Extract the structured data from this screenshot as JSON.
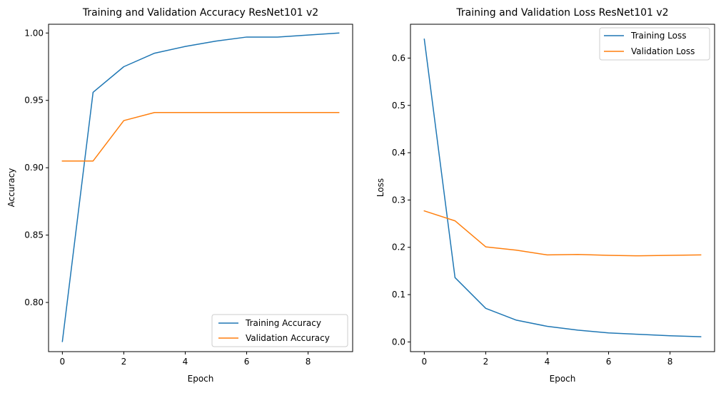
{
  "chart_data": [
    {
      "type": "line",
      "title": "Training and Validation Accuracy ResNet101 v2",
      "xlabel": "Epoch",
      "ylabel": "Accuracy",
      "x": [
        0,
        1,
        2,
        3,
        4,
        5,
        6,
        7,
        8,
        9
      ],
      "xlim": [
        -0.45,
        9.45
      ],
      "ylim": [
        0.7635,
        1.0065
      ],
      "xticks": [
        0,
        2,
        4,
        6,
        8
      ],
      "yticks": [
        0.8,
        0.85,
        0.9,
        0.95,
        1.0
      ],
      "ytick_labels": [
        "0.80",
        "0.85",
        "0.90",
        "0.95",
        "1.00"
      ],
      "legend_loc": "lower right",
      "grid": false,
      "series": [
        {
          "name": "Training Accuracy",
          "color": "#1f77b4",
          "values": [
            0.771,
            0.956,
            0.975,
            0.985,
            0.99,
            0.994,
            0.997,
            0.997,
            0.9985,
            1.0
          ]
        },
        {
          "name": "Validation Accuracy",
          "color": "#ff7f0e",
          "values": [
            0.905,
            0.905,
            0.935,
            0.941,
            0.941,
            0.941,
            0.941,
            0.941,
            0.941,
            0.941
          ]
        }
      ]
    },
    {
      "type": "line",
      "title": "Training and Validation Loss ResNet101 v2",
      "xlabel": "Epoch",
      "ylabel": "Loss",
      "x": [
        0,
        1,
        2,
        3,
        4,
        5,
        6,
        7,
        8,
        9
      ],
      "xlim": [
        -0.45,
        9.45
      ],
      "ylim": [
        -0.0205,
        0.6715
      ],
      "xticks": [
        0,
        2,
        4,
        6,
        8
      ],
      "yticks": [
        0.0,
        0.1,
        0.2,
        0.3,
        0.4,
        0.5,
        0.6
      ],
      "ytick_labels": [
        "0.0",
        "0.1",
        "0.2",
        "0.3",
        "0.4",
        "0.5",
        "0.6"
      ],
      "legend_loc": "upper right",
      "grid": false,
      "series": [
        {
          "name": "Training Loss",
          "color": "#1f77b4",
          "values": [
            0.64,
            0.136,
            0.071,
            0.046,
            0.033,
            0.025,
            0.019,
            0.016,
            0.013,
            0.011
          ]
        },
        {
          "name": "Validation Loss",
          "color": "#ff7f0e",
          "values": [
            0.277,
            0.256,
            0.201,
            0.194,
            0.184,
            0.185,
            0.183,
            0.182,
            0.183,
            0.184
          ]
        }
      ]
    }
  ]
}
